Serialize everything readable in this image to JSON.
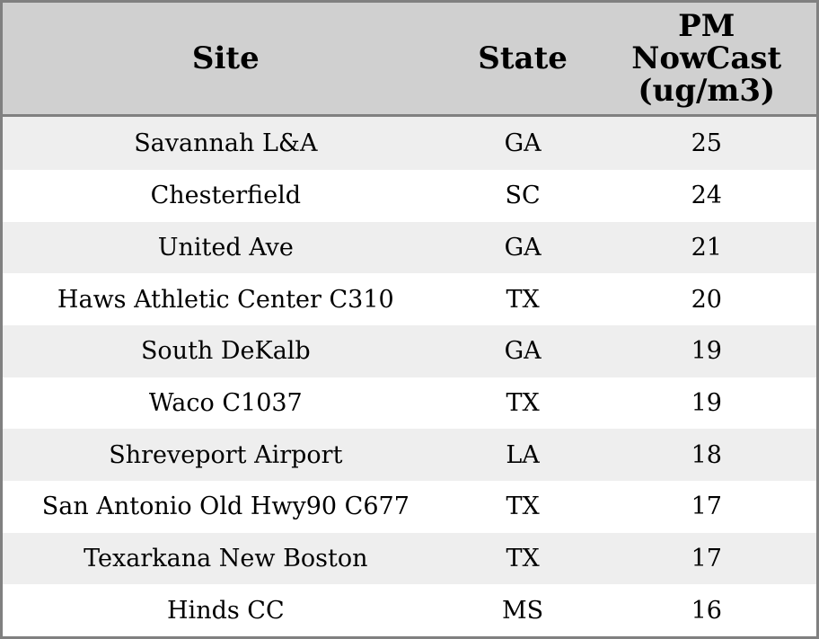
{
  "table": {
    "columns": [
      {
        "id": "site",
        "label": "Site"
      },
      {
        "id": "state",
        "label": "State"
      },
      {
        "id": "pm_nowcast",
        "label": "PM\nNowCast\n(ug/m3)"
      }
    ],
    "colors": {
      "header_bg": "#d0d0d0",
      "row_odd_bg": "#eeeeee",
      "row_even_bg": "#ffffff",
      "border": "#808080",
      "text": "#000000"
    }
  },
  "chart_data": {
    "type": "table",
    "columns": [
      "Site",
      "State",
      "PM NowCast (ug/m3)"
    ],
    "rows": [
      [
        "Savannah L&A",
        "GA",
        25
      ],
      [
        "Chesterfield",
        "SC",
        24
      ],
      [
        "United Ave",
        "GA",
        21
      ],
      [
        "Haws Athletic Center C310",
        "TX",
        20
      ],
      [
        "South DeKalb",
        "GA",
        19
      ],
      [
        "Waco C1037",
        "TX",
        19
      ],
      [
        "Shreveport Airport",
        "LA",
        18
      ],
      [
        "San Antonio Old Hwy90 C677",
        "TX",
        17
      ],
      [
        "Texarkana New Boston",
        "TX",
        17
      ],
      [
        "Hinds CC",
        "MS",
        16
      ]
    ],
    "title": "",
    "value_unit": "ug/m3"
  }
}
